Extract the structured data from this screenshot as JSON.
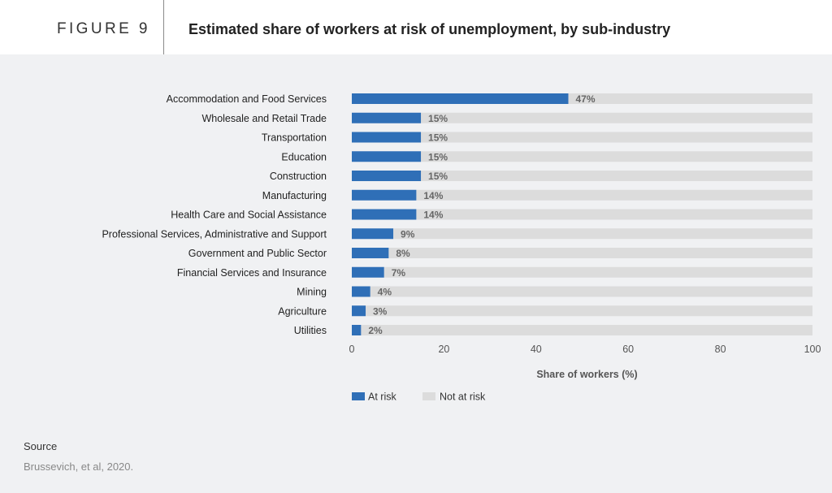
{
  "header": {
    "figure_label": "FIGURE 9",
    "title": "Estimated share of workers at risk of unemployment, by sub-industry"
  },
  "source": {
    "label": "Source",
    "text": "Brussevich, et al, 2020."
  },
  "colors": {
    "at_risk": "#2f6fb7",
    "not_at_risk": "#dcdcdc",
    "value_label": "#666666"
  },
  "chart_data": {
    "type": "bar",
    "orientation": "horizontal",
    "stacked": true,
    "categories": [
      "Accommodation and Food Services",
      "Wholesale and Retail Trade",
      "Transportation",
      "Education",
      "Construction",
      "Manufacturing",
      "Health Care and Social Assistance",
      "Professional Services, Administrative and Support",
      "Government and Public Sector",
      "Financial Services and Insurance",
      "Mining",
      "Agriculture",
      "Utilities"
    ],
    "series": [
      {
        "name": "At risk",
        "values": [
          47,
          15,
          15,
          15,
          15,
          14,
          14,
          9,
          8,
          7,
          4,
          3,
          2
        ]
      },
      {
        "name": "Not at risk",
        "values": [
          53,
          85,
          85,
          85,
          85,
          86,
          86,
          91,
          92,
          93,
          96,
          97,
          98
        ]
      }
    ],
    "value_labels": [
      "47%",
      "15%",
      "15%",
      "15%",
      "15%",
      "14%",
      "14%",
      "9%",
      "8%",
      "7%",
      "4%",
      "3%",
      "2%"
    ],
    "xlabel": "Share of workers (%)",
    "ylabel": "",
    "xlim": [
      0,
      100
    ],
    "xticks": [
      0,
      20,
      40,
      60,
      80,
      100
    ],
    "xtick_labels": [
      "0",
      "20",
      "40",
      "60",
      "80",
      "100"
    ],
    "grid": true,
    "legend": "bottom"
  }
}
